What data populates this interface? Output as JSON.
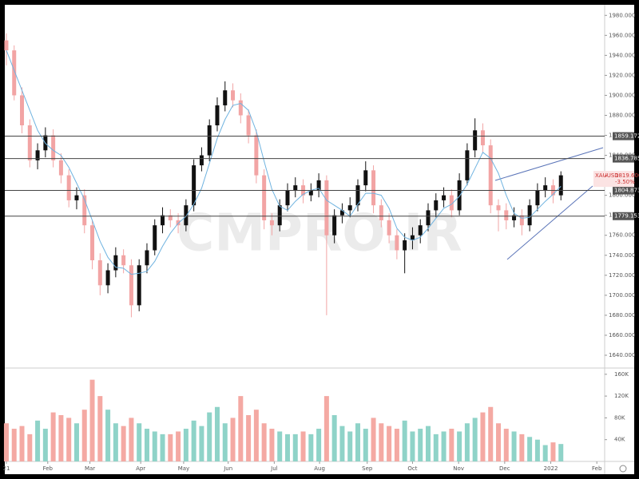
{
  "chart_data": {
    "type": "candlestick",
    "watermark": "CMPRO.IR",
    "symbol": "XAUUSD",
    "last_price": {
      "value": 1819.6,
      "label": "1819.600"
    },
    "change": {
      "value": -3.5,
      "label": "-3.50%"
    },
    "xlim": [
      -0.2,
      76.6
    ],
    "xticks": [
      {
        "value": 0,
        "label": "21"
      },
      {
        "value": 5.3,
        "label": "Feb"
      },
      {
        "value": 10.7,
        "label": "Mar"
      },
      {
        "value": 17.2,
        "label": "Apr"
      },
      {
        "value": 22.7,
        "label": "May"
      },
      {
        "value": 28.4,
        "label": "Jun"
      },
      {
        "value": 34.3,
        "label": "Jul"
      },
      {
        "value": 40.1,
        "label": "Aug"
      },
      {
        "value": 46.2,
        "label": "Sep"
      },
      {
        "value": 52,
        "label": "Oct"
      },
      {
        "value": 57.9,
        "label": "Nov"
      },
      {
        "value": 63.8,
        "label": "Dec"
      },
      {
        "value": 69.7,
        "label": "2022"
      },
      {
        "value": 75.6,
        "label": "Feb"
      }
    ],
    "ylim": [
      1628,
      1989
    ],
    "yticks": [
      {
        "value": 1640,
        "label": "1640.000"
      },
      {
        "value": 1660,
        "label": "1660.000"
      },
      {
        "value": 1680,
        "label": "1680.000"
      },
      {
        "value": 1700,
        "label": "1700.000"
      },
      {
        "value": 1720,
        "label": "1720.000"
      },
      {
        "value": 1740,
        "label": "1740.000"
      },
      {
        "value": 1760,
        "label": "1760.000"
      },
      {
        "value": 1780,
        "label": "1780.000"
      },
      {
        "value": 1800,
        "label": "1800.000"
      },
      {
        "value": 1820,
        "label": "1820.000"
      },
      {
        "value": 1840,
        "label": "1840.000"
      },
      {
        "value": 1860,
        "label": "1860.000"
      },
      {
        "value": 1880,
        "label": "1880.000"
      },
      {
        "value": 1900,
        "label": "1900.000"
      },
      {
        "value": 1920,
        "label": "1920.000"
      },
      {
        "value": 1940,
        "label": "1940.000"
      },
      {
        "value": 1960,
        "label": "1960.000"
      },
      {
        "value": 1980,
        "label": "1980.000"
      }
    ],
    "levels": [
      1859.172,
      1836.785,
      1804.873,
      1779.153
    ],
    "up_color": "#111111",
    "down_color": "#f2a4a4",
    "ma_color": "#6fb3e0",
    "vol_up_color": "#8fd3c8",
    "vol_down_color": "#f4a9a3",
    "open": [
      1955,
      1945,
      1900,
      1870,
      1835,
      1845,
      1860,
      1835,
      1820,
      1795,
      1800,
      1770,
      1735,
      1710,
      1725,
      1740,
      1730,
      1690,
      1730,
      1745,
      1770,
      1780,
      1775,
      1770,
      1790,
      1830,
      1840,
      1870,
      1890,
      1905,
      1895,
      1880,
      1860,
      1820,
      1775,
      1770,
      1790,
      1805,
      1810,
      1800,
      1805,
      1815,
      1760,
      1780,
      1785,
      1790,
      1810,
      1825,
      1790,
      1775,
      1760,
      1745,
      1755,
      1760,
      1770,
      1785,
      1795,
      1800,
      1785,
      1815,
      1845,
      1865,
      1850,
      1790,
      1785,
      1775,
      1780,
      1770,
      1790,
      1805,
      1810,
      1800
    ],
    "high": [
      1962,
      1950,
      1908,
      1876,
      1852,
      1868,
      1866,
      1842,
      1826,
      1808,
      1806,
      1775,
      1742,
      1732,
      1748,
      1746,
      1736,
      1736,
      1752,
      1776,
      1788,
      1786,
      1782,
      1796,
      1836,
      1848,
      1876,
      1898,
      1914,
      1912,
      1902,
      1886,
      1866,
      1826,
      1782,
      1796,
      1812,
      1818,
      1816,
      1812,
      1822,
      1820,
      1786,
      1792,
      1798,
      1816,
      1834,
      1830,
      1796,
      1782,
      1766,
      1762,
      1768,
      1776,
      1792,
      1802,
      1808,
      1806,
      1822,
      1852,
      1877,
      1872,
      1856,
      1796,
      1792,
      1788,
      1786,
      1796,
      1812,
      1818,
      1816,
      1824
    ],
    "low": [
      1930,
      1895,
      1862,
      1828,
      1826,
      1838,
      1828,
      1812,
      1788,
      1786,
      1762,
      1726,
      1700,
      1702,
      1718,
      1722,
      1678,
      1684,
      1722,
      1740,
      1762,
      1768,
      1762,
      1764,
      1784,
      1824,
      1834,
      1864,
      1884,
      1888,
      1872,
      1852,
      1812,
      1766,
      1760,
      1764,
      1784,
      1798,
      1792,
      1794,
      1798,
      1680,
      1752,
      1772,
      1778,
      1784,
      1804,
      1782,
      1768,
      1752,
      1736,
      1722,
      1746,
      1752,
      1764,
      1778,
      1788,
      1778,
      1780,
      1810,
      1838,
      1842,
      1782,
      1764,
      1766,
      1768,
      1760,
      1764,
      1784,
      1798,
      1792,
      1795
    ],
    "close": [
      1945,
      1900,
      1870,
      1835,
      1845,
      1860,
      1835,
      1820,
      1795,
      1800,
      1770,
      1735,
      1710,
      1725,
      1740,
      1730,
      1690,
      1730,
      1745,
      1770,
      1780,
      1775,
      1770,
      1790,
      1830,
      1840,
      1870,
      1890,
      1905,
      1895,
      1880,
      1860,
      1820,
      1775,
      1770,
      1790,
      1805,
      1810,
      1800,
      1805,
      1815,
      1760,
      1780,
      1785,
      1790,
      1810,
      1825,
      1790,
      1775,
      1760,
      1745,
      1755,
      1760,
      1770,
      1785,
      1795,
      1800,
      1785,
      1815,
      1845,
      1865,
      1850,
      1790,
      1785,
      1775,
      1780,
      1770,
      1790,
      1805,
      1810,
      1800,
      1820
    ],
    "ma": [
      1945,
      1925,
      1905,
      1885,
      1865,
      1852,
      1845,
      1840,
      1828,
      1812,
      1796,
      1775,
      1754,
      1738,
      1728,
      1727,
      1721,
      1722,
      1724,
      1734,
      1749,
      1762,
      1772,
      1779,
      1791,
      1807,
      1832,
      1857,
      1876,
      1890,
      1892,
      1885,
      1864,
      1834,
      1806,
      1789,
      1785,
      1794,
      1801,
      1805,
      1807,
      1795,
      1790,
      1785,
      1779,
      1791,
      1802,
      1802,
      1800,
      1787,
      1767,
      1758,
      1755,
      1758,
      1767,
      1777,
      1787,
      1791,
      1799,
      1811,
      1827,
      1843,
      1837,
      1822,
      1800,
      1782,
      1777,
      1778,
      1786,
      1794,
      1801,
      1809
    ],
    "volume": [
      70000,
      60000,
      65000,
      50000,
      75000,
      60000,
      90000,
      85000,
      80000,
      70000,
      95000,
      150000,
      120000,
      95000,
      70000,
      65000,
      80000,
      70000,
      60000,
      55000,
      50000,
      50000,
      55000,
      60000,
      75000,
      65000,
      90000,
      100000,
      70000,
      80000,
      120000,
      85000,
      95000,
      70000,
      60000,
      55000,
      50000,
      50000,
      55000,
      50000,
      60000,
      120000,
      85000,
      65000,
      55000,
      70000,
      60000,
      80000,
      70000,
      65000,
      60000,
      75000,
      55000,
      60000,
      65000,
      50000,
      55000,
      60000,
      55000,
      70000,
      80000,
      90000,
      100000,
      70000,
      60000,
      55000,
      50000,
      45000,
      40000,
      30000,
      35000,
      32000
    ],
    "vlim": [
      0,
      170000
    ],
    "vticks": [
      {
        "value": 40000,
        "label": "40K"
      },
      {
        "value": 80000,
        "label": "80K"
      },
      {
        "value": 120000,
        "label": "120K"
      },
      {
        "value": 160000,
        "label": "160K"
      }
    ]
  }
}
